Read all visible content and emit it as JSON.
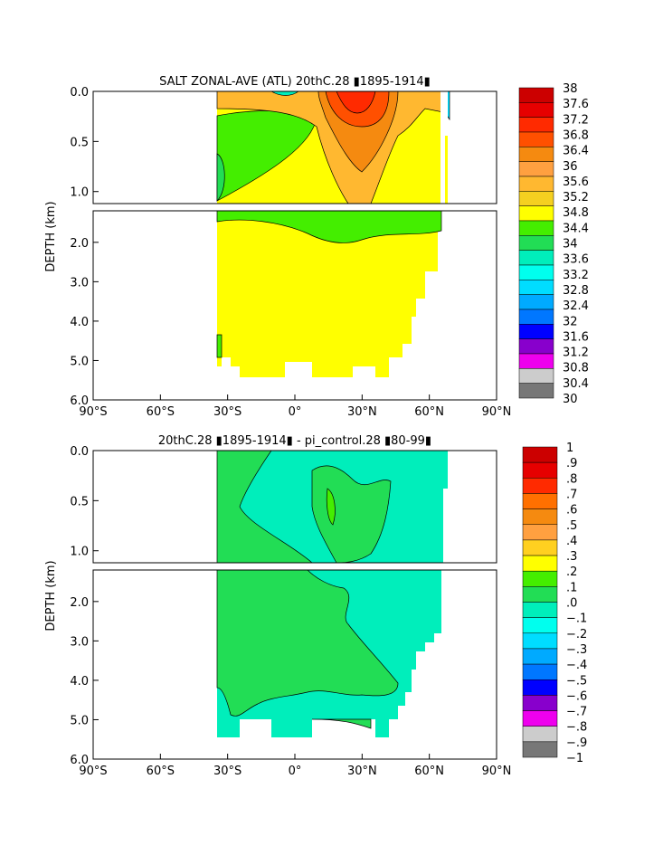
{
  "chart_data": [
    {
      "type": "heatmap",
      "title": "SALT ZONAL-AVE (ATL) 20thC.28 ▮1895-1914▮",
      "ylabel": "DEPTH (km)",
      "xlabel": "",
      "x_ticks": [
        "90°S",
        "60°S",
        "30°S",
        "0°",
        "30°N",
        "60°N",
        "90°N"
      ],
      "y_ticks_upper": [
        "0.0",
        "0.5",
        "1.0"
      ],
      "y_ticks_lower": [
        "2.0",
        "3.0",
        "4.0",
        "5.0",
        "6.0"
      ],
      "xlim": [
        -90,
        90
      ],
      "ylim_km": [
        0,
        6
      ],
      "colorbar": {
        "labels": [
          "38",
          "37.6",
          "37.2",
          "36.8",
          "36.4",
          "36",
          "35.6",
          "35.2",
          "34.8",
          "34.4",
          "34",
          "33.6",
          "33.2",
          "32.8",
          "32.4",
          "32",
          "31.6",
          "31.2",
          "30.8",
          "30.4",
          "30"
        ],
        "colors": [
          "#cc0000",
          "#e60000",
          "#ff2a00",
          "#ff5000",
          "#f58a10",
          "#ffa040",
          "#ffb830",
          "#f5d020",
          "#ffff00",
          "#44ee00",
          "#22dd55",
          "#00eebb",
          "#00ffee",
          "#00ddff",
          "#00aaff",
          "#0077ff",
          "#0000ff",
          "#8800cc",
          "#ee00ee",
          "#cccccc",
          "#777777"
        ]
      },
      "regions": [
        {
          "value": "35.2-35.6",
          "color": "#ffff00"
        },
        {
          "value": "34.4-34.8",
          "color": "#44ee00"
        },
        {
          "value": "35.6-36.0",
          "color": "#ffb830"
        },
        {
          "value": "36.0-36.4",
          "color": "#f58a10"
        },
        {
          "value": "36.4-36.8",
          "color": "#ff5000"
        },
        {
          "value": "36.8-37.2",
          "color": "#ff2a00"
        }
      ]
    },
    {
      "type": "heatmap",
      "title": "20thC.28 ▮1895-1914▮ - pi_control.28 ▮80-99▮",
      "ylabel": "DEPTH (km)",
      "xlabel": "",
      "x_ticks": [
        "90°S",
        "60°S",
        "30°S",
        "0°",
        "30°N",
        "60°N",
        "90°N"
      ],
      "y_ticks_upper": [
        "0.0",
        "0.5",
        "1.0"
      ],
      "y_ticks_lower": [
        "2.0",
        "3.0",
        "4.0",
        "5.0",
        "6.0"
      ],
      "xlim": [
        -90,
        90
      ],
      "ylim_km": [
        0,
        6
      ],
      "colorbar": {
        "labels": [
          "1",
          ".9",
          ".8",
          ".7",
          ".6",
          ".5",
          ".4",
          ".3",
          ".2",
          ".1",
          ".0",
          "−.1",
          "−.2",
          "−.3",
          "−.4",
          "−.5",
          "−.6",
          "−.7",
          "−.8",
          "−.9",
          "−1"
        ],
        "colors": [
          "#cc0000",
          "#e60000",
          "#ff2a00",
          "#ff7000",
          "#f58a10",
          "#ffa040",
          "#ffd020",
          "#ffff00",
          "#44ee00",
          "#22dd55",
          "#00eebb",
          "#00ffee",
          "#00ddff",
          "#00aaff",
          "#0077ff",
          "#0000ff",
          "#8800cc",
          "#ee00ee",
          "#cccccc",
          "#777777"
        ]
      },
      "regions": [
        {
          "value": "0.0-0.1",
          "color": "#22dd55"
        },
        {
          "value": "-0.1-0.0",
          "color": "#00eebb"
        },
        {
          "value": "0.1-0.2",
          "color": "#44ee00"
        }
      ]
    }
  ]
}
